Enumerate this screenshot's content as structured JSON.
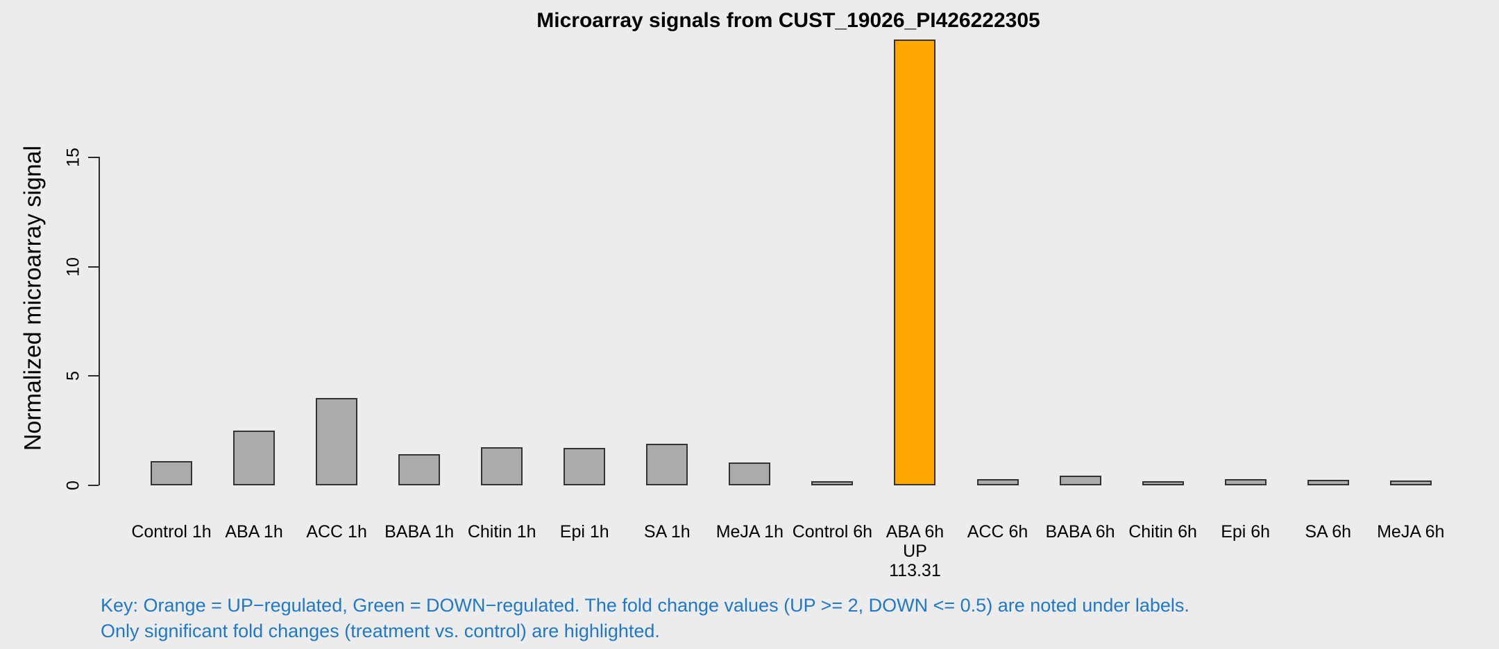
{
  "window": {
    "background": "#ECECEC"
  },
  "chart_data": {
    "type": "bar",
    "title": "Microarray signals from CUST_19026_PI426222305",
    "ylabel": "Normalized microarray signal",
    "xlabel": "",
    "categories": [
      "Control 1h",
      "ABA 1h",
      "ACC 1h",
      "BABA 1h",
      "Chitin 1h",
      "Epi 1h",
      "SA 1h",
      "MeJA 1h",
      "Control 6h",
      "ABA 6h",
      "ACC 6h",
      "BABA 6h",
      "Chitin 6h",
      "Epi 6h",
      "SA 6h",
      "MeJA 6h"
    ],
    "values": [
      1.1,
      2.5,
      4.0,
      1.43,
      1.75,
      1.7,
      1.9,
      1.05,
      0.18,
      20.4,
      0.3,
      0.45,
      0.2,
      0.28,
      0.25,
      0.22
    ],
    "yticks": [
      0,
      5,
      10,
      15
    ],
    "ylim": [
      0,
      20.5
    ],
    "grid": false,
    "legend_position": "none",
    "bar_default_color": "#ABABAB",
    "bar_border_color": "#333333",
    "highlight": {
      "index": 9,
      "color": "#FFA500",
      "sublabels": [
        "UP",
        "113.31"
      ]
    }
  },
  "key_note": {
    "color": "#1F78C8",
    "lines": [
      "Key: Orange = UP−regulated, Green = DOWN−regulated. The fold change values (UP >= 2, DOWN <= 0.5) are noted under labels.",
      "Only significant fold changes (treatment vs. control) are highlighted."
    ]
  }
}
